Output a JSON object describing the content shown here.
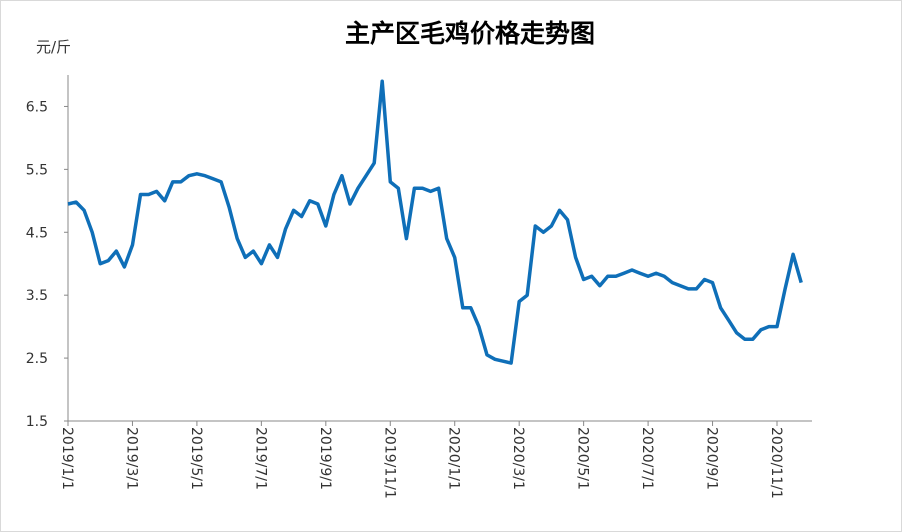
{
  "chart_data": {
    "type": "line",
    "title": "主产区毛鸡价格走势图",
    "y_label": "元/斤",
    "categories": [
      "2019/1/1",
      null,
      null,
      null,
      null,
      null,
      null,
      null,
      "2019/3/1",
      null,
      null,
      null,
      null,
      null,
      null,
      null,
      "2019/5/1",
      null,
      null,
      null,
      null,
      null,
      null,
      null,
      "2019/7/1",
      null,
      null,
      null,
      null,
      null,
      null,
      null,
      "2019/9/1",
      null,
      null,
      null,
      null,
      null,
      null,
      null,
      "2019/11/1",
      null,
      null,
      null,
      null,
      null,
      null,
      null,
      "2020/1/1",
      null,
      null,
      null,
      null,
      null,
      null,
      null,
      "2020/3/1",
      null,
      null,
      null,
      null,
      null,
      null,
      null,
      "2020/5/1",
      null,
      null,
      null,
      null,
      null,
      null,
      null,
      "2020/7/1",
      null,
      null,
      null,
      null,
      null,
      null,
      null,
      "2020/9/1",
      null,
      null,
      null,
      null,
      null,
      null,
      null,
      "2020/11/1",
      null,
      null,
      null
    ],
    "series": [
      {
        "color": "#0f6fb8",
        "values": [
          4.95,
          4.98,
          4.85,
          4.5,
          4.0,
          4.05,
          4.2,
          3.95,
          4.3,
          5.1,
          5.1,
          5.15,
          5.0,
          5.3,
          5.3,
          5.4,
          5.43,
          5.4,
          5.35,
          5.3,
          4.9,
          4.4,
          4.1,
          4.2,
          4.0,
          4.3,
          4.1,
          4.55,
          4.85,
          4.75,
          5.0,
          4.95,
          4.6,
          5.1,
          5.4,
          4.95,
          5.2,
          5.4,
          5.6,
          6.9,
          5.3,
          5.2,
          4.4,
          5.2,
          5.2,
          5.15,
          5.2,
          4.4,
          4.1,
          3.3,
          3.3,
          3.0,
          2.55,
          2.48,
          2.45,
          2.42,
          3.4,
          3.5,
          4.6,
          4.5,
          4.6,
          4.85,
          4.7,
          4.1,
          3.75,
          3.8,
          3.65,
          3.8,
          3.8,
          3.85,
          3.9,
          3.85,
          3.8,
          3.85,
          3.8,
          3.7,
          3.65,
          3.6,
          3.6,
          3.75,
          3.7,
          3.3,
          3.1,
          2.9,
          2.8,
          2.8,
          2.95,
          3.0,
          3.0,
          3.6,
          4.15,
          3.7
        ]
      }
    ],
    "ylim": [
      1.5,
      7.0
    ],
    "yticks": [
      1.5,
      2.5,
      3.5,
      4.5,
      5.5,
      6.5
    ]
  }
}
